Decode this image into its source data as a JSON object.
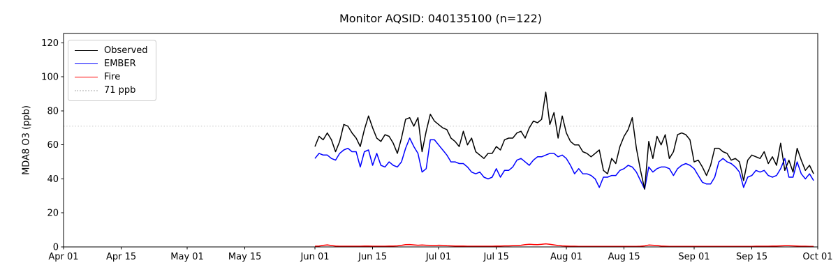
{
  "chart_data": {
    "type": "line",
    "title": "Monitor AQSID: 040135100 (n=122)",
    "xlabel": "",
    "ylabel": "MDA8 O3 (ppb)",
    "ylim": [
      0,
      125.5
    ],
    "yticks": [
      0,
      20,
      40,
      60,
      80,
      100,
      120
    ],
    "x_range_days": [
      0,
      183
    ],
    "x_tick_days": [
      0,
      14,
      30,
      44,
      61,
      75,
      91,
      105,
      122,
      136,
      153,
      167,
      183
    ],
    "x_tick_labels": [
      "Apr 01",
      "Apr 15",
      "May 01",
      "May 15",
      "Jun 01",
      "Jun 15",
      "Jul 01",
      "Jul 15",
      "Aug 01",
      "Aug 15",
      "Sep 01",
      "Sep 15",
      "Oct 01"
    ],
    "grid": false,
    "legend_position": "upper left",
    "n_points": 122,
    "series_start_day": 61,
    "series_start_label": "Jun 01",
    "series_end_label": "Sep 30",
    "reference_line": {
      "value": 71,
      "label": "71 ppb",
      "color": "#d3d3d3",
      "line_style": "dotted"
    },
    "axis_color": "#000000",
    "background_color": "#ffffff",
    "series": [
      {
        "name": "Observed",
        "color": "#000000",
        "values": [
          59,
          65,
          63,
          67,
          63,
          56,
          62,
          72,
          71,
          67,
          64,
          59,
          69,
          77,
          70,
          64,
          62,
          66,
          65,
          61,
          55,
          64,
          75,
          76,
          71,
          76,
          56,
          68,
          78,
          74,
          72,
          70,
          69,
          64,
          62,
          59,
          68,
          60,
          64,
          56,
          54,
          52,
          55,
          55,
          59,
          57,
          63,
          64,
          64,
          67,
          68,
          64,
          70,
          74,
          73,
          75,
          91,
          72,
          79,
          64,
          77,
          67,
          62,
          60,
          60,
          56,
          55,
          53,
          55,
          57,
          45,
          43,
          52,
          49,
          59,
          65,
          69,
          76,
          58,
          45,
          34,
          62,
          52,
          65,
          60,
          66,
          52,
          56,
          66,
          67,
          66,
          63,
          50,
          51,
          47,
          42,
          48,
          58,
          58,
          56,
          55,
          51,
          52,
          50,
          39,
          51,
          54,
          53,
          52,
          56,
          49,
          53,
          48,
          61,
          45,
          51,
          44,
          58,
          51,
          45,
          48,
          43
        ]
      },
      {
        "name": "EMBER",
        "color": "#0000ff",
        "values": [
          52,
          55,
          54,
          54,
          52,
          51,
          55,
          57,
          58,
          56,
          56,
          47,
          56,
          57,
          48,
          55,
          48,
          47,
          50,
          48,
          47,
          50,
          58,
          64,
          59,
          55,
          44,
          46,
          63,
          63,
          60,
          57,
          54,
          50,
          50,
          49,
          49,
          47,
          44,
          43,
          44,
          41,
          40,
          41,
          46,
          41,
          45,
          45,
          47,
          51,
          52,
          50,
          48,
          51,
          53,
          53,
          54,
          55,
          55,
          53,
          54,
          52,
          48,
          43,
          46,
          43,
          43,
          42,
          40,
          35,
          41,
          41,
          42,
          42,
          45,
          46,
          48,
          47,
          44,
          39,
          34,
          47,
          44,
          46,
          47,
          47,
          46,
          42,
          46,
          48,
          49,
          48,
          46,
          42,
          38,
          37,
          37,
          41,
          50,
          52,
          50,
          49,
          47,
          44,
          35,
          41,
          42,
          45,
          44,
          45,
          42,
          41,
          42,
          46,
          52,
          41,
          41,
          50,
          43,
          40,
          43,
          39
        ]
      },
      {
        "name": "Fire",
        "color": "#ff0000",
        "values": [
          0.4,
          0.5,
          0.9,
          1.2,
          0.8,
          0.5,
          0.4,
          0.4,
          0.4,
          0.4,
          0.4,
          0.4,
          0.5,
          0.5,
          0.4,
          0.4,
          0.4,
          0.4,
          0.5,
          0.5,
          0.6,
          0.9,
          1.3,
          1.4,
          1.2,
          1.0,
          1.1,
          1.0,
          0.9,
          0.8,
          1.0,
          0.9,
          0.7,
          0.6,
          0.5,
          0.5,
          0.5,
          0.4,
          0.4,
          0.4,
          0.4,
          0.4,
          0.4,
          0.4,
          0.5,
          0.5,
          0.6,
          0.6,
          0.7,
          0.8,
          1.0,
          1.3,
          1.5,
          1.4,
          1.3,
          1.5,
          1.8,
          1.5,
          1.2,
          0.8,
          0.6,
          0.5,
          0.4,
          0.4,
          0.3,
          0.3,
          0.3,
          0.3,
          0.3,
          0.3,
          0.3,
          0.3,
          0.3,
          0.3,
          0.3,
          0.3,
          0.3,
          0.3,
          0.3,
          0.4,
          0.6,
          1.1,
          1.0,
          0.8,
          0.5,
          0.4,
          0.3,
          0.3,
          0.3,
          0.3,
          0.3,
          0.3,
          0.3,
          0.3,
          0.3,
          0.3,
          0.3,
          0.3,
          0.3,
          0.3,
          0.3,
          0.3,
          0.3,
          0.3,
          0.3,
          0.3,
          0.3,
          0.4,
          0.4,
          0.4,
          0.4,
          0.5,
          0.5,
          0.6,
          0.7,
          0.7,
          0.6,
          0.5,
          0.4,
          0.4,
          0.3,
          0.3
        ]
      }
    ],
    "legend_entries": [
      "Observed",
      "EMBER",
      "Fire",
      "71 ppb"
    ]
  }
}
